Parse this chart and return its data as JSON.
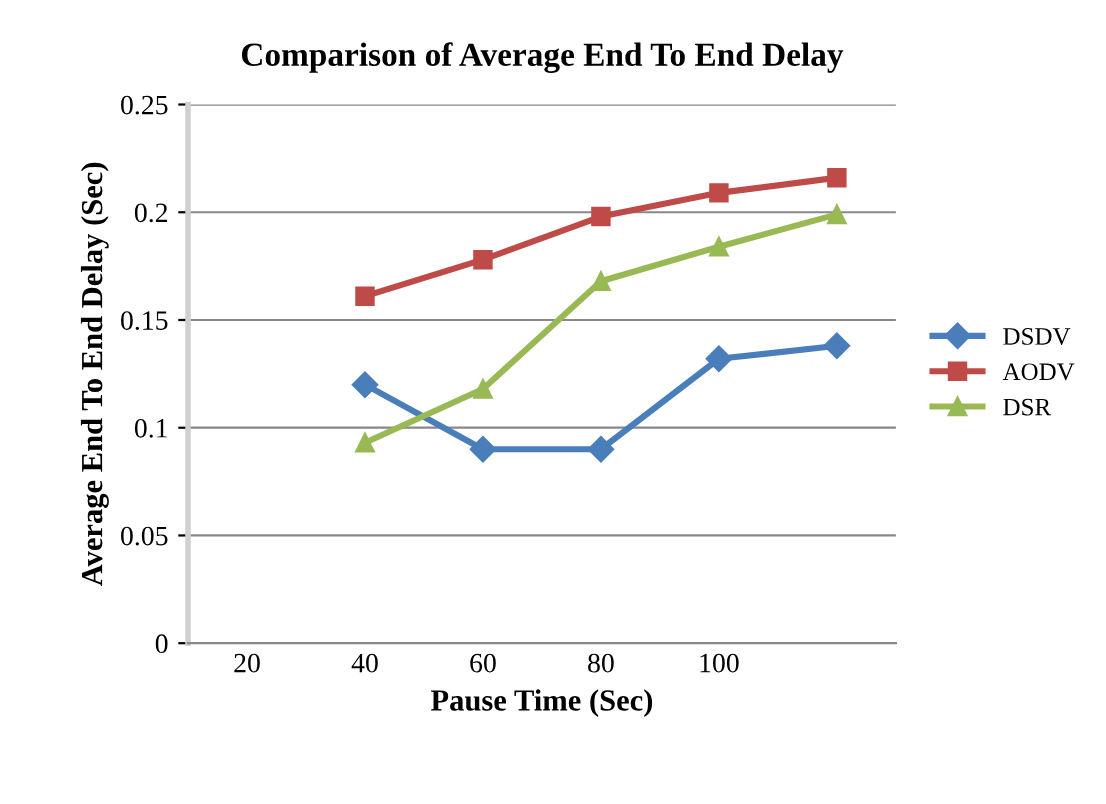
{
  "chart_data": {
    "type": "line",
    "title": "Comparison of Average End To End Delay",
    "xlabel": "Pause Time (Sec)",
    "ylabel": "Average End To End Delay (Sec)",
    "categories": [
      "20",
      "40",
      "60",
      "80",
      "100",
      null
    ],
    "series": [
      {
        "name": "DSDV",
        "color": "#4a7ebb",
        "marker": "diamond",
        "values": [
          null,
          0.12,
          0.09,
          0.09,
          0.132,
          0.138
        ]
      },
      {
        "name": "AODV",
        "color": "#be4b48",
        "marker": "square",
        "values": [
          null,
          0.161,
          0.178,
          0.198,
          0.209,
          0.216
        ]
      },
      {
        "name": "DSR",
        "color": "#98b954",
        "marker": "triangle",
        "values": [
          null,
          0.093,
          0.118,
          0.168,
          0.184,
          0.199
        ]
      }
    ],
    "ylim": [
      0,
      0.25
    ],
    "yticks": [
      0,
      0.05,
      0.1,
      0.15,
      0.2,
      0.25
    ],
    "grid": "y",
    "legend": "right",
    "line_style": "solid"
  }
}
